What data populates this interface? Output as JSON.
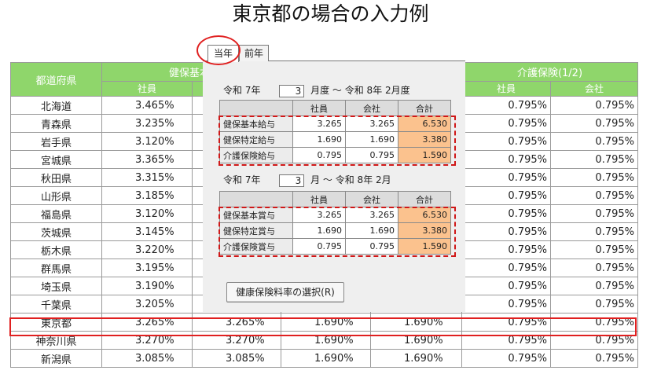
{
  "page_title": "東京都の場合の入力例",
  "table": {
    "col_prefecture": "都道府県",
    "group_kenpo": "健保基本(",
    "group_kaigo": "介護保険(1/2)",
    "sub_employee": "社員",
    "sub_company": "会社",
    "rows": [
      {
        "pref": "北海道",
        "kenpo": "3.465%",
        "kaigo_e": "0.795%",
        "kaigo_c": "0.795%"
      },
      {
        "pref": "青森県",
        "kenpo": "3.235%",
        "kaigo_e": "0.795%",
        "kaigo_c": "0.795%"
      },
      {
        "pref": "岩手県",
        "kenpo": "3.120%",
        "kaigo_e": "0.795%",
        "kaigo_c": "0.795%"
      },
      {
        "pref": "宮城県",
        "kenpo": "3.365%",
        "kaigo_e": "0.795%",
        "kaigo_c": "0.795%"
      },
      {
        "pref": "秋田県",
        "kenpo": "3.315%",
        "kaigo_e": "0.795%",
        "kaigo_c": "0.795%"
      },
      {
        "pref": "山形県",
        "kenpo": "3.185%",
        "kaigo_e": "0.795%",
        "kaigo_c": "0.795%"
      },
      {
        "pref": "福島県",
        "kenpo": "3.120%",
        "kaigo_e": "0.795%",
        "kaigo_c": "0.795%"
      },
      {
        "pref": "茨城県",
        "kenpo": "3.145%",
        "kaigo_e": "0.795%",
        "kaigo_c": "0.795%"
      },
      {
        "pref": "栃木県",
        "kenpo": "3.220%",
        "kaigo_e": "0.795%",
        "kaigo_c": "0.795%"
      },
      {
        "pref": "群馬県",
        "kenpo": "3.195%",
        "kaigo_e": "0.795%",
        "kaigo_c": "0.795%"
      },
      {
        "pref": "埼玉県",
        "kenpo": "3.190%",
        "kaigo_e": "0.795%",
        "kaigo_c": "0.795%"
      },
      {
        "pref": "千葉県",
        "kenpo": "3.205%",
        "kaigo_e": "0.795%",
        "kaigo_c": "0.795%"
      }
    ],
    "full_rows": [
      {
        "pref": "東京都",
        "kenpo_e": "3.265%",
        "kenpo_c": "3.265%",
        "tokutei_e": "1.690%",
        "tokutei_c": "1.690%",
        "kaigo_e": "0.795%",
        "kaigo_c": "0.795%"
      },
      {
        "pref": "神奈川県",
        "kenpo_e": "3.270%",
        "kenpo_c": "3.270%",
        "tokutei_e": "1.690%",
        "tokutei_c": "1.690%",
        "kaigo_e": "0.795%",
        "kaigo_c": "0.795%"
      },
      {
        "pref": "新潟県",
        "kenpo_e": "3.085%",
        "kenpo_c": "3.085%",
        "tokutei_e": "1.690%",
        "tokutei_c": "1.690%",
        "kaigo_e": "0.795%",
        "kaigo_c": "0.795%"
      }
    ]
  },
  "dialog": {
    "tab_current": "当年",
    "tab_previous": "前年",
    "salary_period": {
      "era_from": "令和 7年",
      "month": "3",
      "suffix": "月度 ～ 令和 8年  2月度"
    },
    "bonus_period": {
      "era_from": "令和 7年",
      "month": "3",
      "suffix": "月 ～ 令和 8年  2月"
    },
    "col_employee": "社員",
    "col_company": "会社",
    "col_total": "合計",
    "salary_rows": [
      {
        "label": "健保基本給与",
        "employee": "3.265",
        "company": "3.265",
        "total": "6.530"
      },
      {
        "label": "健保特定給与",
        "employee": "1.690",
        "company": "1.690",
        "total": "3.380"
      },
      {
        "label": "介護保険給与",
        "employee": "0.795",
        "company": "0.795",
        "total": "1.590"
      }
    ],
    "bonus_rows": [
      {
        "label": "健保基本賞与",
        "employee": "3.265",
        "company": "3.265",
        "total": "6.530"
      },
      {
        "label": "健保特定賞与",
        "employee": "1.690",
        "company": "1.690",
        "total": "3.380"
      },
      {
        "label": "介護保険賞与",
        "employee": "0.795",
        "company": "0.795",
        "total": "1.590"
      }
    ],
    "select_button": "健康保険料率の選択(R)"
  },
  "colors": {
    "header_green": "#8fd66b",
    "total_orange": "#fbc28e",
    "highlight_red": "#e02020"
  }
}
